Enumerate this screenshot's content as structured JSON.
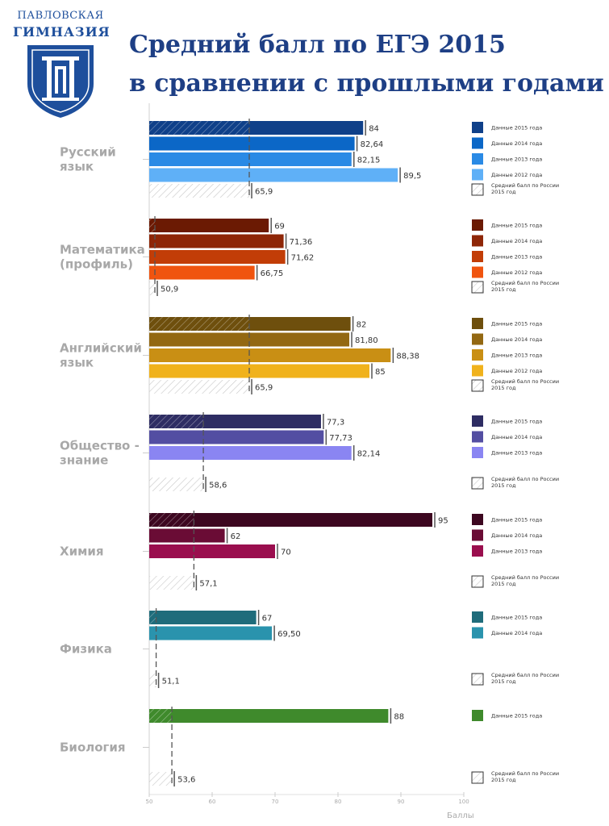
{
  "header": {
    "logo_line1": "ПАВЛОВСКАЯ",
    "logo_line2": "ГИМНАЗИЯ",
    "title_line1": "Средний балл по ЕГЭ 2015",
    "title_line2": "в сравнении с прошлыми годами"
  },
  "colors": {
    "ru": [
      "#0f4089",
      "#0b67c7",
      "#2a8ae5",
      "#5fb0f7"
    ],
    "ma": [
      "#6b1a03",
      "#8e2607",
      "#c23d07",
      "#f0540f"
    ],
    "en": [
      "#6e4f0d",
      "#936812",
      "#c98f14",
      "#f0b21c"
    ],
    "ob": [
      "#2e2d63",
      "#534ea2",
      "#8a85f2"
    ],
    "ch": [
      "#3d0720",
      "#6a0c35",
      "#9a0e4e"
    ],
    "ph": [
      "#1f6c7b",
      "#2a93ad"
    ],
    "bi": [
      "#3f8a2c"
    ],
    "russia_hatch": "#bcbcbc",
    "dashed_line": "#555555"
  },
  "chart_data": {
    "type": "bar",
    "orientation": "horizontal",
    "xlabel": "Баллы",
    "xlim": [
      50,
      100
    ],
    "xticks": [
      50,
      60,
      70,
      80,
      90,
      100
    ],
    "grid": false,
    "legend_position": "right of each group",
    "russia_label": "Средний балл по России 2015 год",
    "groups": [
      {
        "key": "ru",
        "name_lines": [
          "Русский",
          "язык"
        ],
        "series": [
          {
            "name": "Данные 2015 года",
            "value": 84,
            "label": "84"
          },
          {
            "name": "Данные 2014 года",
            "value": 82.64,
            "label": "82,64"
          },
          {
            "name": "Данные 2013 года",
            "value": 82.15,
            "label": "82,15"
          },
          {
            "name": "Данные 2012 года",
            "value": 89.5,
            "label": "89,5"
          }
        ],
        "russia": {
          "value": 65.9,
          "label": "65,9"
        }
      },
      {
        "key": "ma",
        "name_lines": [
          "Математика",
          "(профиль)"
        ],
        "series": [
          {
            "name": "Данные 2015 года",
            "value": 69,
            "label": "69"
          },
          {
            "name": "Данные 2014 года",
            "value": 71.36,
            "label": "71,36"
          },
          {
            "name": "Данные 2013 года",
            "value": 71.62,
            "label": "71,62"
          },
          {
            "name": "Данные 2012 года",
            "value": 66.75,
            "label": "66,75"
          }
        ],
        "russia": {
          "value": 50.9,
          "label": "50,9"
        }
      },
      {
        "key": "en",
        "name_lines": [
          "Английский",
          "язык"
        ],
        "series": [
          {
            "name": "Данные 2015 года",
            "value": 82,
            "label": "82"
          },
          {
            "name": "Данные 2014 года",
            "value": 81.8,
            "label": "81,80"
          },
          {
            "name": "Данные 2013 года",
            "value": 88.38,
            "label": "88,38"
          },
          {
            "name": "Данные 2012 года",
            "value": 85,
            "label": "85"
          }
        ],
        "russia": {
          "value": 65.9,
          "label": "65,9"
        }
      },
      {
        "key": "ob",
        "name_lines": [
          "Общество -",
          "знание"
        ],
        "series": [
          {
            "name": "Данные 2015 года",
            "value": 77.3,
            "label": "77,3"
          },
          {
            "name": "Данные 2014 года",
            "value": 77.73,
            "label": "77,73"
          },
          {
            "name": "Данные 2013 года",
            "value": 82.14,
            "label": "82,14"
          }
        ],
        "russia": {
          "value": 58.6,
          "label": "58,6"
        }
      },
      {
        "key": "ch",
        "name_lines": [
          "Химия"
        ],
        "series": [
          {
            "name": "Данные 2015 года",
            "value": 95,
            "label": "95"
          },
          {
            "name": "Данные 2014 года",
            "value": 62,
            "label": "62"
          },
          {
            "name": "Данные 2013 года",
            "value": 70,
            "label": "70"
          }
        ],
        "russia": {
          "value": 57.1,
          "label": "57,1"
        }
      },
      {
        "key": "ph",
        "name_lines": [
          "Физика"
        ],
        "series": [
          {
            "name": "Данные 2015 года",
            "value": 67,
            "label": "67"
          },
          {
            "name": "Данные 2014 года",
            "value": 69.5,
            "label": "69,50"
          }
        ],
        "russia": {
          "value": 51.1,
          "label": "51,1"
        }
      },
      {
        "key": "bi",
        "name_lines": [
          "Биология"
        ],
        "series": [
          {
            "name": "Данные 2015 года",
            "value": 88,
            "label": "88"
          }
        ],
        "russia": {
          "value": 53.6,
          "label": "53,6"
        }
      }
    ]
  }
}
